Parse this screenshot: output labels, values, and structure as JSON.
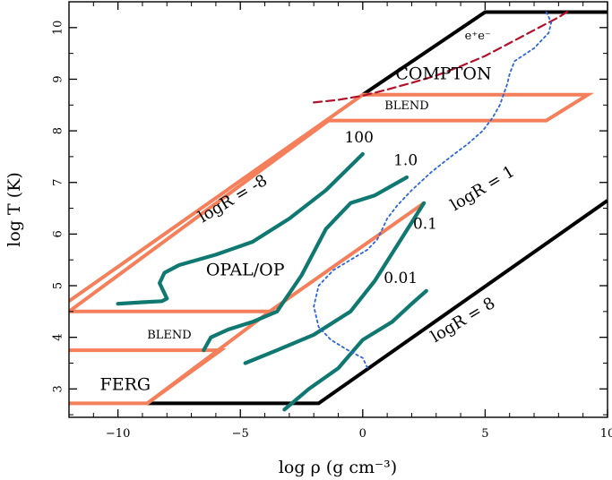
{
  "chart_data": {
    "type": "line",
    "title": "",
    "xlabel": "log ρ (g cm⁻³)",
    "ylabel": "log T (K)",
    "xlim": [
      -12,
      10
    ],
    "ylim": [
      2.45,
      10.5
    ],
    "x_ticks": [
      -10,
      -5,
      0,
      5,
      10
    ],
    "y_ticks": [
      3,
      4,
      5,
      6,
      7,
      8,
      9,
      10
    ],
    "grid": false,
    "colors": {
      "boundary": "#000000",
      "region": "#f47f5a",
      "opacity_track": "#0f7870",
      "pair_line": "#b0102a",
      "dotted_track": "#2a66d9"
    },
    "regions": [
      {
        "name": "outer-boundary",
        "color_key": "boundary",
        "points": [
          [
            -8.8,
            2.72
          ],
          [
            -1.8,
            2.72
          ],
          [
            10,
            6.65
          ]
        ]
      },
      {
        "name": "outer-boundary-top",
        "color_key": "boundary",
        "points": [
          [
            0,
            8.7
          ],
          [
            5,
            10.3
          ],
          [
            10,
            10.3
          ]
        ]
      },
      {
        "name": "opal-op-region",
        "color_key": "region",
        "points": [
          [
            -12,
            4.7
          ],
          [
            0,
            8.7
          ],
          [
            9.2,
            8.7
          ],
          [
            7.5,
            8.2
          ],
          [
            -1.4,
            8.2
          ],
          [
            -12,
            4.5
          ]
        ]
      },
      {
        "name": "ferg-blend-region",
        "color_key": "region",
        "points": [
          [
            -12,
            4.5
          ],
          [
            -3.8,
            4.5
          ],
          [
            2.5,
            6.6
          ]
        ]
      },
      {
        "name": "ferg-region",
        "color_key": "region",
        "points": [
          [
            -12,
            3.75
          ],
          [
            -5.8,
            3.75
          ],
          [
            -8.8,
            2.72
          ],
          [
            -12,
            2.72
          ]
        ]
      },
      {
        "name": "mid-region-edge",
        "color_key": "region",
        "points": [
          [
            -8.8,
            2.72
          ],
          [
            -3.8,
            4.5
          ]
        ]
      }
    ],
    "series": [
      {
        "name": "logR=100",
        "color_key": "opacity_track",
        "x": [
          -10,
          -9,
          -8.2,
          -8.0,
          -8.3,
          -8.1,
          -7.5,
          -6,
          -4.5,
          -3,
          -1.5,
          0
        ],
        "y": [
          4.65,
          4.68,
          4.7,
          4.75,
          5.05,
          5.25,
          5.4,
          5.6,
          5.85,
          6.3,
          6.85,
          7.55
        ]
      },
      {
        "name": "logR=1.0",
        "color_key": "opacity_track",
        "x": [
          -6.5,
          -6.2,
          -5.5,
          -4.5,
          -3.5,
          -2.5,
          -1.5,
          -0.5,
          0.5,
          1.8
        ],
        "y": [
          3.75,
          4.0,
          4.15,
          4.3,
          4.5,
          5.2,
          6.1,
          6.6,
          6.75,
          7.1
        ]
      },
      {
        "name": "logR=0.1",
        "color_key": "opacity_track",
        "x": [
          -4.8,
          -3.5,
          -2,
          -0.5,
          0.5,
          1.5,
          2.5
        ],
        "y": [
          3.5,
          3.75,
          4.05,
          4.5,
          5.1,
          5.85,
          6.6
        ]
      },
      {
        "name": "logR=0.01",
        "color_key": "opacity_track",
        "x": [
          -3.2,
          -2.2,
          -1,
          0,
          1.2,
          2,
          2.6
        ],
        "y": [
          2.6,
          3.0,
          3.4,
          3.95,
          4.3,
          4.65,
          4.9
        ]
      },
      {
        "name": "e+e- pair line",
        "color_key": "pair_line",
        "dash": "9 5",
        "x": [
          -2,
          -1,
          0,
          1,
          2,
          3,
          4,
          5,
          6,
          7,
          8,
          8.5
        ],
        "y": [
          8.55,
          8.6,
          8.68,
          8.8,
          8.93,
          9.07,
          9.25,
          9.45,
          9.7,
          9.95,
          10.2,
          10.35
        ]
      },
      {
        "name": "dotted track",
        "color_key": "dotted_track",
        "dash": "2.5 3.5",
        "x": [
          7.5,
          7.7,
          7.6,
          7.0,
          6.2,
          6.0,
          5.9,
          5.6,
          5.3,
          4.9,
          4.3,
          3.6,
          2.8,
          2.0,
          1.4,
          1.0,
          0.8,
          0.6,
          0.2,
          -0.5,
          -1.2,
          -1.8,
          -2.0,
          -1.8,
          -1.3,
          -0.6,
          0,
          0.2
        ],
        "y": [
          10.3,
          10.1,
          9.9,
          9.6,
          9.35,
          9.1,
          8.9,
          8.5,
          8.25,
          8.0,
          7.75,
          7.5,
          7.2,
          6.85,
          6.55,
          6.3,
          6.1,
          5.9,
          5.7,
          5.5,
          5.3,
          5.0,
          4.6,
          4.2,
          3.95,
          3.75,
          3.6,
          3.4
        ]
      }
    ],
    "annotations": [
      {
        "name": "compton-label",
        "text": "COMPTON",
        "x": 3.3,
        "y": 9.0,
        "size": 19
      },
      {
        "name": "pair-label",
        "text": "e⁺e⁻",
        "x": 4.7,
        "y": 9.77,
        "size": 13,
        "color_key": "pair_line"
      },
      {
        "name": "blend-upper-label",
        "text": "BLEND",
        "x": 1.8,
        "y": 8.42,
        "size": 13
      },
      {
        "name": "blend-lower-label",
        "text": "BLEND",
        "x": -7.9,
        "y": 3.98,
        "size": 13
      },
      {
        "name": "opal-op-label",
        "text": "OPAL/OP",
        "x": -4.8,
        "y": 5.2,
        "size": 19
      },
      {
        "name": "ferg-label",
        "text": "FERG",
        "x": -9.7,
        "y": 2.98,
        "size": 19
      },
      {
        "name": "track-label-100",
        "text": "100",
        "x": -0.15,
        "y": 7.78,
        "size": 17
      },
      {
        "name": "track-label-1",
        "text": "1.0",
        "x": 1.75,
        "y": 7.33,
        "size": 17
      },
      {
        "name": "track-label-01",
        "text": "0.1",
        "x": 2.55,
        "y": 6.1,
        "size": 17
      },
      {
        "name": "track-label-001",
        "text": "0.01",
        "x": 1.55,
        "y": 5.05,
        "size": 17
      },
      {
        "name": "logr-minus8-label",
        "text": "logR = -8",
        "x": -5.2,
        "y": 6.6,
        "size": 18,
        "rotate": -31
      },
      {
        "name": "logr-1-label",
        "text": "logR = 1",
        "x": 5.0,
        "y": 6.8,
        "size": 18,
        "rotate": -31
      },
      {
        "name": "logr-8-label",
        "text": "logR = 8",
        "x": 4.2,
        "y": 4.25,
        "size": 18,
        "rotate": -31
      }
    ]
  }
}
